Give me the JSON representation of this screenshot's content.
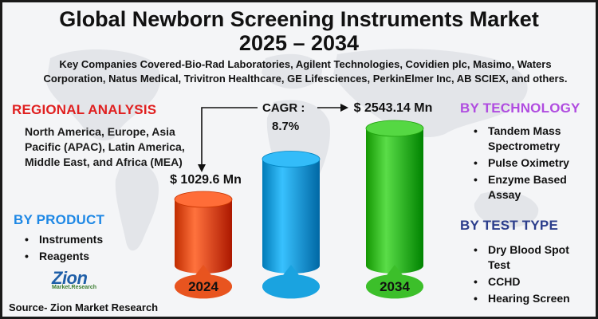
{
  "header": {
    "title_line1": "Global Newborn Screening Instruments Market",
    "title_line2": "2025 – 2034",
    "key_companies": "Key Companies Covered-Bio-Rad Laboratories, Agilent Technologies, Covidien plc, Masimo, Waters Corporation, Natus Medical, Trivitron Healthcare, GE Lifesciences, PerkinElmer Inc, AB SCIEX, and others."
  },
  "regional": {
    "heading": "REGIONAL ANALYSIS",
    "text": "North America, Europe, Asia Pacific (APAC), Latin America, Middle East, and Africa (MEA)",
    "color": "#e02020"
  },
  "product": {
    "heading": "BY PRODUCT",
    "items": [
      "Instruments",
      "Reagents"
    ],
    "color": "#1e88e5"
  },
  "technology": {
    "heading": "BY TECHNOLOGY",
    "items": [
      "Tandem Mass Spectrometry",
      "Pulse Oximetry",
      "Enzyme Based Assay"
    ],
    "color": "#b04ce0"
  },
  "test_type": {
    "heading": "BY TEST TYPE",
    "items": [
      "Dry Blood Spot Test",
      "CCHD",
      "Hearing Screen"
    ],
    "color": "#2c3e8c"
  },
  "cagr": {
    "label": "CAGR :",
    "value": "8.7%"
  },
  "bullet": "•",
  "logo": {
    "name": "Zion",
    "sub": "Market.Research"
  },
  "source": "Source- Zion Market Research",
  "chart_data": {
    "type": "bar",
    "categories": [
      "2024",
      "",
      "2034"
    ],
    "values": [
      1029.6,
      null,
      2543.14
    ],
    "value_labels": [
      "$ 1029.6 Mn",
      "",
      "$ 2543.14 Mn"
    ],
    "unit": "USD Mn",
    "colors": [
      "#e8541f",
      "#1aa3e0",
      "#3cbf2a"
    ],
    "cagr": "8.7%"
  }
}
